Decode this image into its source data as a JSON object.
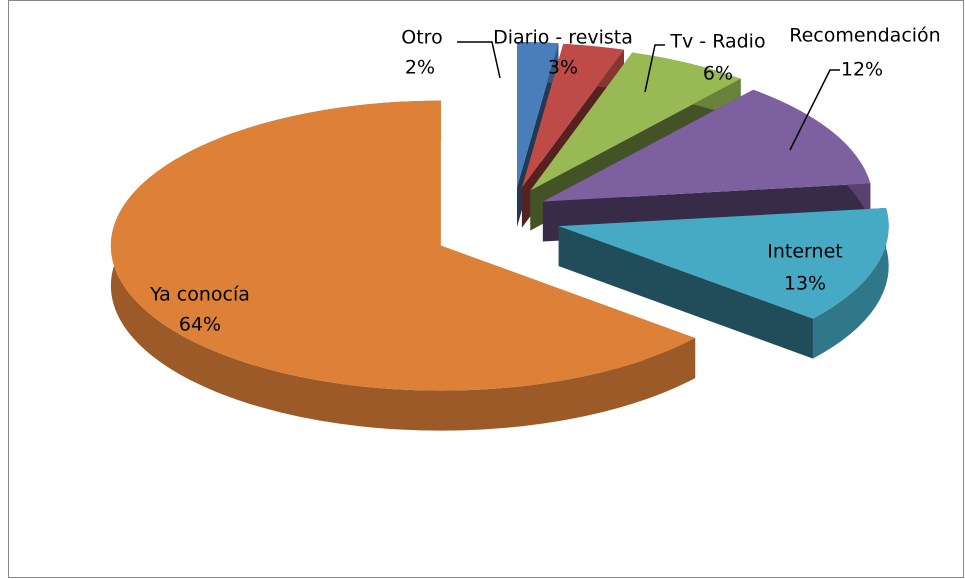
{
  "chart_data": {
    "type": "pie",
    "categories": [
      "Otro",
      "Diario - revista",
      "Tv - Radio",
      "Recomendación",
      "Internet",
      "Ya conocía"
    ],
    "values": [
      2,
      3,
      6,
      12,
      13,
      64
    ],
    "value_labels": [
      "2%",
      "3%",
      "6%",
      "12%",
      "13%",
      "64%"
    ],
    "colors": [
      "#4a7ebb",
      "#be4b48",
      "#98b954",
      "#7d60a0",
      "#46aac5",
      "#dd8038"
    ]
  }
}
